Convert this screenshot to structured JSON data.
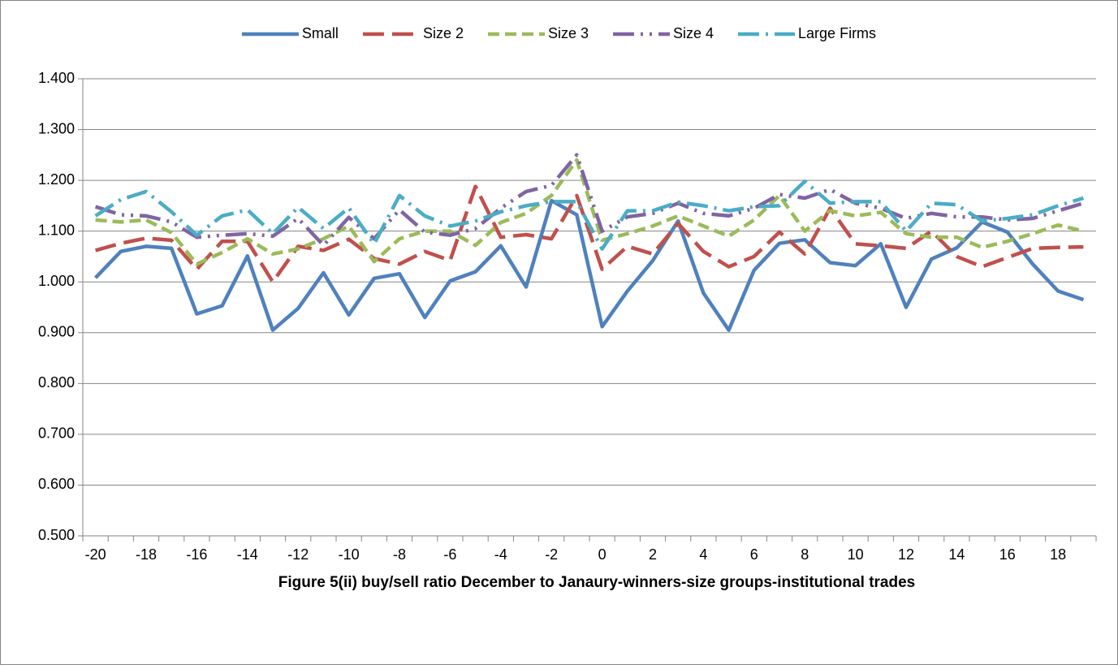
{
  "chart_data": {
    "type": "line",
    "title": "Figure 5(ii) buy/sell ratio December to Janaury-winners-size groups-institutional trades",
    "categories": [
      "-20",
      null,
      "-18",
      null,
      "-16",
      null,
      "-14",
      null,
      "-12",
      null,
      "-10",
      null,
      "-8",
      null,
      "-6",
      null,
      "-4",
      null,
      "-2",
      null,
      "0",
      null,
      "2",
      null,
      "4",
      null,
      "6",
      null,
      "8",
      null,
      "10",
      null,
      "12",
      null,
      "14",
      null,
      "16",
      null,
      "18",
      null
    ],
    "series": [
      {
        "name": "Small",
        "color": "#4f81bd",
        "line_style": "solid",
        "values": [
          1.008,
          1.06,
          1.07,
          1.066,
          0.937,
          0.953,
          1.051,
          0.905,
          0.948,
          1.018,
          0.935,
          1.007,
          1.016,
          0.93,
          1.002,
          1.02,
          1.071,
          0.99,
          1.16,
          1.132,
          0.912,
          0.982,
          1.042,
          1.12,
          0.978,
          0.905,
          1.023,
          1.076,
          1.083,
          1.038,
          1.032,
          1.075,
          0.95,
          1.045,
          1.067,
          1.118,
          1.098,
          1.035,
          0.982,
          0.965
        ]
      },
      {
        "name": "Size 2",
        "color": "#c0504d",
        "line_style": "longdash",
        "values": [
          1.062,
          1.076,
          1.086,
          1.082,
          1.025,
          1.08,
          1.08,
          1.0,
          1.07,
          1.062,
          1.084,
          1.046,
          1.035,
          1.06,
          1.042,
          1.188,
          1.088,
          1.093,
          1.085,
          1.17,
          1.025,
          1.07,
          1.055,
          1.115,
          1.06,
          1.03,
          1.05,
          1.098,
          1.055,
          1.145,
          1.075,
          1.071,
          1.066,
          1.1,
          1.05,
          1.03,
          1.048,
          1.066,
          1.068,
          1.069
        ]
      },
      {
        "name": "Size 3",
        "color": "#9bbb59",
        "line_style": "dash",
        "values": [
          1.122,
          1.118,
          1.122,
          1.097,
          1.035,
          1.058,
          1.085,
          1.055,
          1.065,
          1.085,
          1.11,
          1.04,
          1.085,
          1.1,
          1.1,
          1.072,
          1.117,
          1.135,
          1.17,
          1.24,
          1.082,
          1.095,
          1.11,
          1.13,
          1.11,
          1.09,
          1.122,
          1.17,
          1.1,
          1.14,
          1.13,
          1.137,
          1.095,
          1.088,
          1.088,
          1.068,
          1.08,
          1.095,
          1.112,
          1.1
        ]
      },
      {
        "name": "Size 4",
        "color": "#8064a2",
        "line_style": "longdashdotdot",
        "values": [
          1.148,
          1.132,
          1.13,
          1.118,
          1.088,
          1.092,
          1.095,
          1.09,
          1.125,
          1.072,
          1.127,
          1.085,
          1.142,
          1.098,
          1.092,
          1.105,
          1.145,
          1.178,
          1.19,
          1.25,
          1.1,
          1.128,
          1.135,
          1.155,
          1.135,
          1.13,
          1.145,
          1.172,
          1.165,
          1.182,
          1.155,
          1.145,
          1.125,
          1.135,
          1.128,
          1.128,
          1.122,
          1.125,
          1.14,
          1.155
        ]
      },
      {
        "name": "Large Firms",
        "color": "#4bacc6",
        "line_style": "longdashdot",
        "values": [
          1.13,
          1.162,
          1.178,
          1.138,
          1.092,
          1.13,
          1.142,
          1.095,
          1.147,
          1.105,
          1.146,
          1.075,
          1.17,
          1.13,
          1.11,
          1.12,
          1.138,
          1.15,
          1.158,
          1.158,
          1.065,
          1.14,
          1.14,
          1.157,
          1.15,
          1.14,
          1.148,
          1.15,
          1.198,
          1.155,
          1.158,
          1.158,
          1.1,
          1.155,
          1.152,
          1.12,
          1.125,
          1.132,
          1.15,
          1.165
        ]
      }
    ],
    "ylim": [
      0.5,
      1.4
    ],
    "yticks": [
      {
        "value": 0.5,
        "label": "0.500"
      },
      {
        "value": 0.6,
        "label": "0.600"
      },
      {
        "value": 0.7,
        "label": "0.700"
      },
      {
        "value": 0.8,
        "label": "0.800"
      },
      {
        "value": 0.9,
        "label": "0.900"
      },
      {
        "value": 1.0,
        "label": "1.000"
      },
      {
        "value": 1.1,
        "label": "1.100"
      },
      {
        "value": 1.2,
        "label": "1.200"
      },
      {
        "value": 1.3,
        "label": "1.300"
      },
      {
        "value": 1.4,
        "label": "1.400"
      }
    ],
    "grid": true,
    "legend": "top"
  }
}
